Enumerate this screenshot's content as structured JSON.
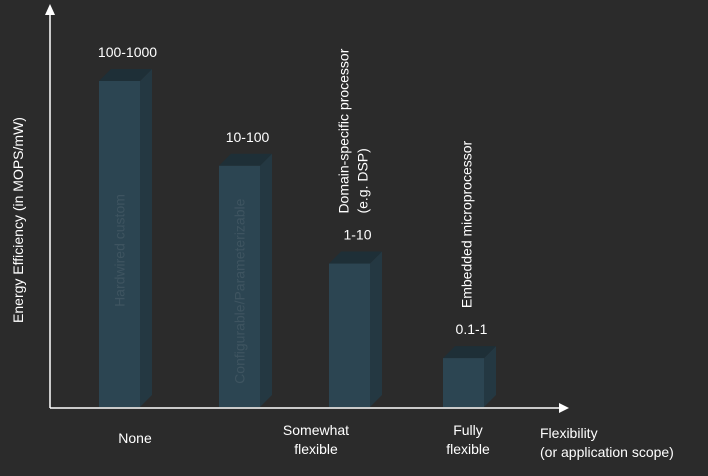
{
  "chart_data": {
    "type": "bar",
    "title": "",
    "ylabel": "Energy Efficiency (in MOPS/mW)",
    "xlabel": [
      "Flexibility",
      "(or application scope)"
    ],
    "x_ticks": [
      {
        "lines": [
          "None"
        ]
      },
      {
        "lines": [
          "Somewhat",
          "flexible"
        ]
      },
      {
        "lines": [
          "Fully",
          "flexible"
        ]
      }
    ],
    "bars": [
      {
        "category": "Hardwired custom",
        "value_label": "100-1000",
        "level": 1.0,
        "inside_label": "Hardwired custom",
        "outside_label": []
      },
      {
        "category": "Configurable/Parameterizable",
        "value_label": "10-100",
        "level": 0.74,
        "inside_label": "Configurable/Parameterizable",
        "outside_label": []
      },
      {
        "category": "Domain-specific processor (e.g. DSP)",
        "value_label": "1-10",
        "level": 0.44,
        "inside_label": "",
        "outside_label": [
          "Domain-specific processor",
          "(e.g. DSP)"
        ]
      },
      {
        "category": "Embedded microprocessor",
        "value_label": "0.1-1",
        "level": 0.15,
        "inside_label": "",
        "outside_label": [
          "Embedded microprocessor"
        ]
      }
    ],
    "colors": {
      "background": "#2b2b2b",
      "bar_front": "#2c4552",
      "bar_side": "#243842",
      "bar_top": "#1e2f37",
      "axis": "#ffffff",
      "text": "#ffffff",
      "inside_text": "#3e5460"
    }
  }
}
